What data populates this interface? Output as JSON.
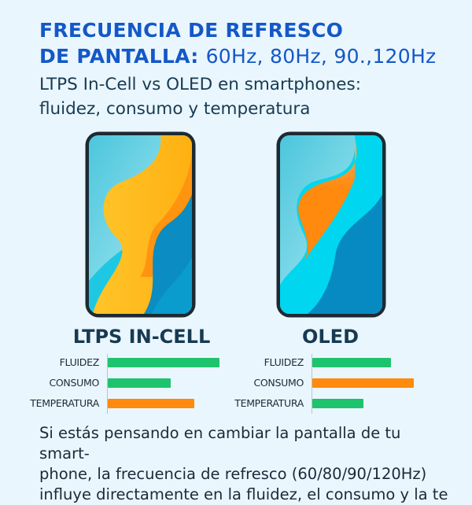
{
  "title": {
    "line1": "FRECUENCIA DE REFRESCO",
    "line2a": "DE PANTALLA:",
    "line2b": "60Hz, 80Hz, 90.,120Hz"
  },
  "subtitle": {
    "line1": "LTPS In-Cell vs OLED en smartphones:",
    "line2": "fluidez, consumo y temperatura"
  },
  "colors": {
    "title": "#1458c8",
    "good": "#1ec36e",
    "bad": "#ff8a0d",
    "background": "#eaf6fd"
  },
  "panels": [
    {
      "name": "LTPS IN-CELL",
      "metrics": [
        {
          "label": "FLUIDEZ",
          "level": 0.98,
          "status": "good"
        },
        {
          "label": "CONSUMO",
          "level": 0.55,
          "status": "good"
        },
        {
          "label": "TEMPERATURA",
          "level": 0.76,
          "status": "bad"
        }
      ]
    },
    {
      "name": "OLED",
      "metrics": [
        {
          "label": "FLUIDEZ",
          "level": 0.69,
          "status": "good"
        },
        {
          "label": "CONSUMO",
          "level": 0.89,
          "status": "bad"
        },
        {
          "label": "TEMPERATURA",
          "level": 0.45,
          "status": "good"
        }
      ]
    }
  ],
  "body": {
    "line1": "Si estás pensando en cambiar la pantalla de tu smart-",
    "line2": "phone, la frecuencia de refresco (60/80/90/120Hz)",
    "line3": "influye directamente en la fluidez, el consumo y la te"
  }
}
